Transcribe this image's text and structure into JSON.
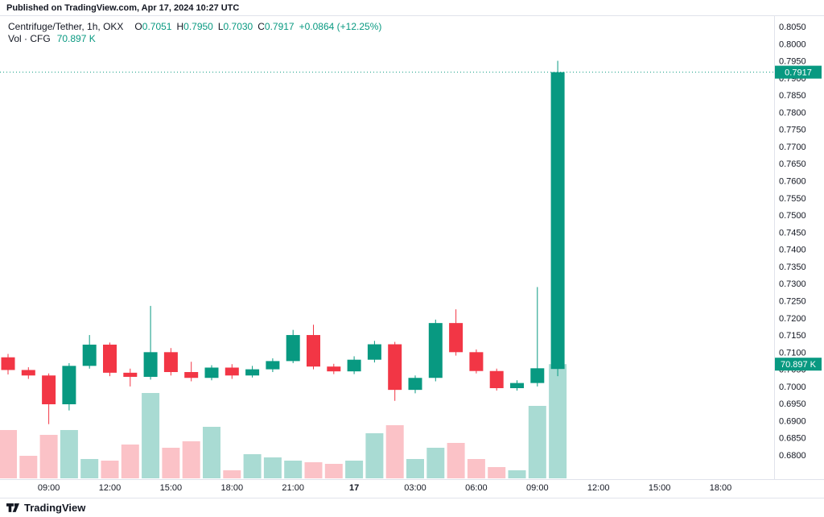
{
  "page": {
    "published_caption": "Published on TradingView.com, Apr 17, 2024 10:27 UTC",
    "brand": "TradingView"
  },
  "legend": {
    "title": "Centrifuge/Tether, 1h, OKX",
    "ohlc": [
      {
        "label": "O",
        "value": "0.7051"
      },
      {
        "label": "H",
        "value": "0.7950"
      },
      {
        "label": "L",
        "value": "0.7030"
      },
      {
        "label": "C",
        "value": "0.7917"
      }
    ],
    "change": "+0.0864 (+12.25%)",
    "volume_title": "Vol · CFG",
    "volume_value": "70.897 K"
  },
  "badges": {
    "last_price": "0.7917",
    "last_volume": "70.897 K"
  },
  "colors": {
    "up": "#089981",
    "down": "#f23645",
    "vol_up": "rgba(8,153,129,0.35)",
    "vol_down": "rgba(242,54,69,0.30)",
    "axis_line": "#e0e3eb",
    "axis_text": "#131722",
    "badge_text": "#ffffff"
  },
  "chart_data": {
    "type": "candlestick_with_volume",
    "title": "Centrifuge/Tether",
    "interval": "1h",
    "exchange": "OKX",
    "legend_note": "Vol · CFG 70.897 K",
    "y_axis": {
      "min": 0.68,
      "max": 0.805,
      "step": 0.005,
      "ticks": [
        "0.8050",
        "0.8000",
        "0.7950",
        "0.7900",
        "0.7850",
        "0.7800",
        "0.7750",
        "0.7700",
        "0.7650",
        "0.7600",
        "0.7550",
        "0.7500",
        "0.7450",
        "0.7400",
        "0.7350",
        "0.7300",
        "0.7250",
        "0.7200",
        "0.7150",
        "0.7100",
        "0.7050",
        "0.7000",
        "0.6950",
        "0.6900",
        "0.6850",
        "0.6800"
      ]
    },
    "x_axis": {
      "labels": [
        {
          "label": "09:00",
          "index": 2
        },
        {
          "label": "12:00",
          "index": 5
        },
        {
          "label": "15:00",
          "index": 8
        },
        {
          "label": "18:00",
          "index": 11
        },
        {
          "label": "21:00",
          "index": 14
        },
        {
          "label": "17",
          "index": 17,
          "bold": true
        },
        {
          "label": "03:00",
          "index": 20
        },
        {
          "label": "06:00",
          "index": 23
        },
        {
          "label": "09:00",
          "index": 26
        },
        {
          "label": "12:00",
          "index": 29
        },
        {
          "label": "15:00",
          "index": 32
        },
        {
          "label": "18:00",
          "index": 35
        }
      ]
    },
    "last_price": 0.7917,
    "last_volume_k": 70.897,
    "candles": [
      {
        "time": "Apr 16 07:00",
        "o": 0.7085,
        "h": 0.7095,
        "l": 0.7035,
        "c": 0.7048,
        "vol_k": 30
      },
      {
        "time": "Apr 16 08:00",
        "o": 0.7048,
        "h": 0.7056,
        "l": 0.7022,
        "c": 0.7032,
        "vol_k": 14
      },
      {
        "time": "Apr 16 09:00",
        "o": 0.7032,
        "h": 0.7038,
        "l": 0.689,
        "c": 0.6948,
        "vol_k": 27
      },
      {
        "time": "Apr 16 10:00",
        "o": 0.6948,
        "h": 0.7068,
        "l": 0.693,
        "c": 0.706,
        "vol_k": 30
      },
      {
        "time": "Apr 16 11:00",
        "o": 0.706,
        "h": 0.715,
        "l": 0.7052,
        "c": 0.7122,
        "vol_k": 12
      },
      {
        "time": "Apr 16 12:00",
        "o": 0.7122,
        "h": 0.7128,
        "l": 0.703,
        "c": 0.704,
        "vol_k": 11
      },
      {
        "time": "Apr 16 13:00",
        "o": 0.704,
        "h": 0.7052,
        "l": 0.7,
        "c": 0.7028,
        "vol_k": 21
      },
      {
        "time": "Apr 16 14:00",
        "o": 0.7028,
        "h": 0.7235,
        "l": 0.702,
        "c": 0.71,
        "vol_k": 53
      },
      {
        "time": "Apr 16 15:00",
        "o": 0.71,
        "h": 0.7112,
        "l": 0.7032,
        "c": 0.7042,
        "vol_k": 19
      },
      {
        "time": "Apr 16 16:00",
        "o": 0.7042,
        "h": 0.7072,
        "l": 0.7015,
        "c": 0.7025,
        "vol_k": 23
      },
      {
        "time": "Apr 16 17:00",
        "o": 0.7025,
        "h": 0.7062,
        "l": 0.7018,
        "c": 0.7055,
        "vol_k": 32
      },
      {
        "time": "Apr 16 18:00",
        "o": 0.7055,
        "h": 0.7065,
        "l": 0.7022,
        "c": 0.7032,
        "vol_k": 5
      },
      {
        "time": "Apr 16 19:00",
        "o": 0.7032,
        "h": 0.706,
        "l": 0.7026,
        "c": 0.705,
        "vol_k": 15
      },
      {
        "time": "Apr 16 20:00",
        "o": 0.705,
        "h": 0.7082,
        "l": 0.7042,
        "c": 0.7074,
        "vol_k": 13
      },
      {
        "time": "Apr 16 21:00",
        "o": 0.7074,
        "h": 0.7165,
        "l": 0.7068,
        "c": 0.715,
        "vol_k": 11
      },
      {
        "time": "Apr 16 22:00",
        "o": 0.715,
        "h": 0.718,
        "l": 0.705,
        "c": 0.7058,
        "vol_k": 10
      },
      {
        "time": "Apr 16 23:00",
        "o": 0.7058,
        "h": 0.7066,
        "l": 0.7036,
        "c": 0.7044,
        "vol_k": 9
      },
      {
        "time": "Apr 17 00:00",
        "o": 0.7044,
        "h": 0.7088,
        "l": 0.7036,
        "c": 0.7078,
        "vol_k": 11
      },
      {
        "time": "Apr 17 01:00",
        "o": 0.7078,
        "h": 0.7133,
        "l": 0.707,
        "c": 0.7123,
        "vol_k": 28
      },
      {
        "time": "Apr 17 02:00",
        "o": 0.7123,
        "h": 0.713,
        "l": 0.6958,
        "c": 0.699,
        "vol_k": 33
      },
      {
        "time": "Apr 17 03:00",
        "o": 0.699,
        "h": 0.7032,
        "l": 0.698,
        "c": 0.7025,
        "vol_k": 12
      },
      {
        "time": "Apr 17 04:00",
        "o": 0.7025,
        "h": 0.7195,
        "l": 0.7015,
        "c": 0.7185,
        "vol_k": 19
      },
      {
        "time": "Apr 17 05:00",
        "o": 0.7185,
        "h": 0.7225,
        "l": 0.709,
        "c": 0.71,
        "vol_k": 22
      },
      {
        "time": "Apr 17 06:00",
        "o": 0.71,
        "h": 0.7108,
        "l": 0.7038,
        "c": 0.7045,
        "vol_k": 12
      },
      {
        "time": "Apr 17 07:00",
        "o": 0.7045,
        "h": 0.7052,
        "l": 0.6988,
        "c": 0.6995,
        "vol_k": 7
      },
      {
        "time": "Apr 17 08:00",
        "o": 0.6995,
        "h": 0.7018,
        "l": 0.6988,
        "c": 0.701,
        "vol_k": 5
      },
      {
        "time": "Apr 17 09:00",
        "o": 0.701,
        "h": 0.729,
        "l": 0.7,
        "c": 0.7053,
        "vol_k": 45
      },
      {
        "time": "Apr 17 10:00",
        "o": 0.7051,
        "h": 0.795,
        "l": 0.703,
        "c": 0.7917,
        "vol_k": 70.897
      }
    ]
  }
}
